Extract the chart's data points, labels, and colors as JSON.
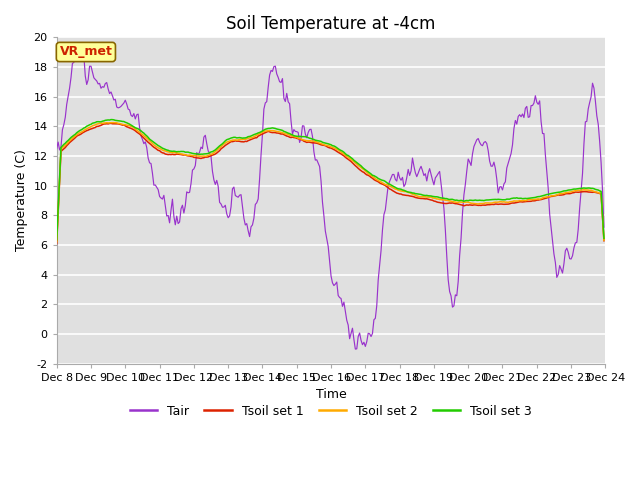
{
  "title": "Soil Temperature at -4cm",
  "xlabel": "Time",
  "ylabel": "Temperature (C)",
  "ylim": [
    -2,
    20
  ],
  "xtick_labels": [
    "Dec 8",
    "Dec 9",
    "Dec 10",
    "Dec 11",
    "Dec 12",
    "Dec 13",
    "Dec 14",
    "Dec 15",
    "Dec 16",
    "Dec 17",
    "Dec 18",
    "Dec 19",
    "Dec 20",
    "Dec 21",
    "Dec 22",
    "Dec 23",
    "Dec 24"
  ],
  "ytick_values": [
    -2,
    0,
    2,
    4,
    6,
    8,
    10,
    12,
    14,
    16,
    18,
    20
  ],
  "line_colors": {
    "Tair": "#9933cc",
    "Tsoil_set1": "#dd2200",
    "Tsoil_set2": "#ffaa00",
    "Tsoil_set3": "#22cc00"
  },
  "legend_labels": [
    "Tair",
    "Tsoil set 1",
    "Tsoil set 2",
    "Tsoil set 3"
  ],
  "annotation_text": "VR_met",
  "annotation_color": "#cc2200",
  "annotation_bg": "#ffff99",
  "title_fontsize": 12,
  "axis_fontsize": 9,
  "tick_fontsize": 8
}
